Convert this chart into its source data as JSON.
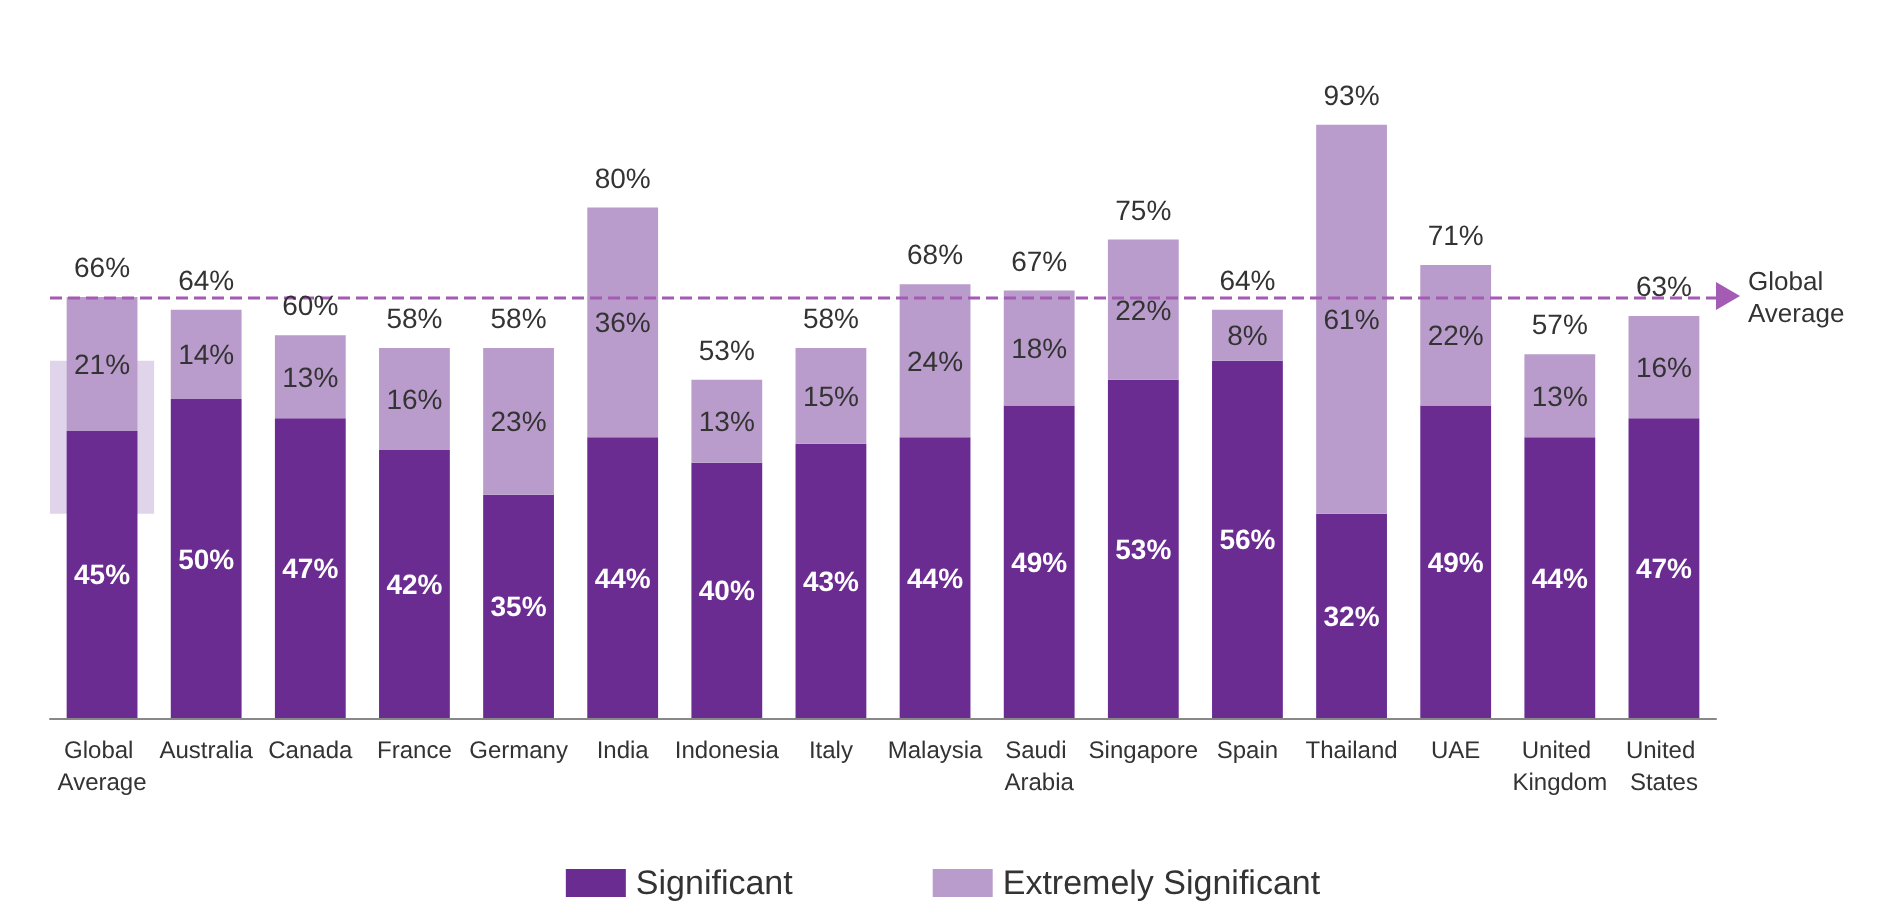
{
  "chart_data": {
    "type": "bar",
    "stacked": true,
    "tick_labels": "x",
    "legend": "bottom",
    "categories": [
      "Global Average",
      "Australia",
      "Canada",
      "France",
      "Germany",
      "India",
      "Indonesia",
      "Italy",
      "Malaysia",
      "Saudi Arabia",
      "Singapore",
      "Spain",
      "Thailand",
      "UAE",
      "United Kingdom",
      "United States"
    ],
    "series": [
      {
        "name": "Significant",
        "color": "#6a2c91",
        "values": [
          45,
          50,
          47,
          42,
          35,
          44,
          40,
          43,
          44,
          49,
          53,
          56,
          32,
          49,
          44,
          47
        ],
        "value_labels": [
          "45%",
          "50%",
          "47%",
          "42%",
          "35%",
          "44%",
          "40%",
          "43%",
          "44%",
          "49%",
          "53%",
          "56%",
          "32%",
          "49%",
          "44%",
          "47%"
        ]
      },
      {
        "name": "Extremely Significant",
        "color": "#b99ccb",
        "values": [
          21,
          14,
          13,
          16,
          23,
          36,
          13,
          15,
          24,
          18,
          22,
          8,
          61,
          22,
          13,
          16
        ],
        "value_labels": [
          "21%",
          "14%",
          "13%",
          "16%",
          "23%",
          "36%",
          "13%",
          "15%",
          "24%",
          "18%",
          "22%",
          "8%",
          "61%",
          "22%",
          "13%",
          "16%"
        ]
      }
    ],
    "totals": [
      "66%",
      "64%",
      "60%",
      "58%",
      "58%",
      "80%",
      "53%",
      "58%",
      "68%",
      "67%",
      "75%",
      "64%",
      "93%",
      "71%",
      "57%",
      "63%"
    ],
    "ref_lines": [
      {
        "axis": "y",
        "value": 66,
        "label": "Global Average",
        "color": "#a35bb4",
        "line_style": "dashed"
      }
    ],
    "bands": [
      {
        "axis": "x",
        "from": "Global Average",
        "to": "Global Average",
        "color": "#c9b8dc"
      }
    ]
  }
}
